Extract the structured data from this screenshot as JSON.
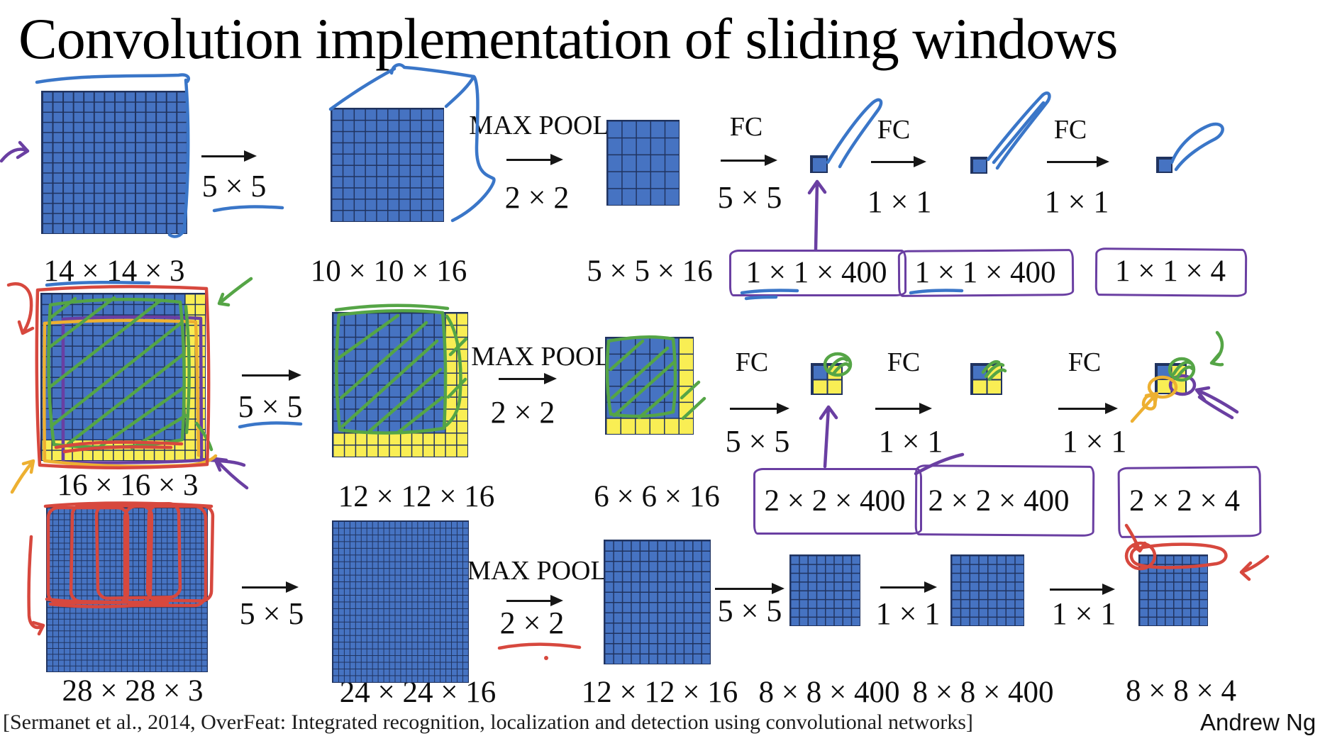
{
  "slide": {
    "title": "Convolution implementation of sliding windows",
    "citation": "[Sermanet et al., 2014, OverFeat: Integrated recognition, localization and detection using convolutional networks]",
    "attribution": "Andrew Ng"
  },
  "colors": {
    "grid_blue": "#4673c2",
    "grid_yellow": "#f9ee54",
    "grid_line": "#20335f",
    "pen_blue": "#3a76c8",
    "pen_purple": "#6a3fa2",
    "pen_green": "#55a546",
    "pen_red": "#d7483e",
    "pen_orange": "#edb031",
    "text": "#101010"
  },
  "rows": [
    {
      "name": "row-14x14",
      "ops": [
        {
          "top": "",
          "bottom": "5 × 5"
        },
        {
          "top": "MAX POOL",
          "bottom": "2 × 2"
        },
        {
          "top": "FC",
          "bottom": "5 × 5"
        },
        {
          "top": "FC",
          "bottom": "1 × 1"
        },
        {
          "top": "FC",
          "bottom": "1 × 1"
        }
      ],
      "dims": [
        "14 × 14  × 3",
        "10 × 10 × 16",
        "5 × 5 × 16",
        "1 × 1 × 400",
        "1 × 1 × 400",
        "1 × 1 × 4"
      ]
    },
    {
      "name": "row-16x16",
      "ops": [
        {
          "top": "",
          "bottom": "5 × 5"
        },
        {
          "top": "MAX POOL",
          "bottom": "2 × 2"
        },
        {
          "top": "FC",
          "bottom": "5 × 5"
        },
        {
          "top": "FC",
          "bottom": "1 × 1"
        },
        {
          "top": "FC",
          "bottom": "1 × 1"
        }
      ],
      "dims": [
        "16 × 16 × 3",
        "12 × 12 × 16",
        "6 × 6 × 16",
        "2 × 2 × 400",
        "2 × 2 × 400",
        "2 × 2 × 4"
      ]
    },
    {
      "name": "row-28x28",
      "ops": [
        {
          "top": "",
          "bottom": "5 × 5"
        },
        {
          "top": "MAX POOL",
          "bottom": "2 × 2"
        },
        {
          "top": "",
          "bottom": "5 × 5"
        },
        {
          "top": "",
          "bottom": "1 × 1"
        },
        {
          "top": "",
          "bottom": "1 × 1"
        }
      ],
      "dims": [
        "28 × 28 × 3",
        "24 × 24 × 16",
        "12 × 12 × 16",
        "8 × 8 × 400",
        "8 × 8 × 400",
        "8 × 8 × 4"
      ]
    }
  ],
  "grids": {
    "r1_input": {
      "cols": 14,
      "rows": 14,
      "blue_cols": 14,
      "blue_rows": 14
    },
    "r1_conv": {
      "cols": 10,
      "rows": 10,
      "blue_cols": 10,
      "blue_rows": 10
    },
    "r1_pool": {
      "cols": 5,
      "rows": 5,
      "blue_cols": 5,
      "blue_rows": 5
    },
    "r1_fc1": {
      "cols": 1,
      "rows": 1,
      "blue_cols": 1,
      "blue_rows": 1
    },
    "r1_fc2": {
      "cols": 1,
      "rows": 1,
      "blue_cols": 1,
      "blue_rows": 1
    },
    "r1_out": {
      "cols": 1,
      "rows": 1,
      "blue_cols": 1,
      "blue_rows": 1
    },
    "r2_input": {
      "cols": 16,
      "rows": 16,
      "blue_cols": 14,
      "blue_rows": 14
    },
    "r2_conv": {
      "cols": 12,
      "rows": 12,
      "blue_cols": 10,
      "blue_rows": 10
    },
    "r2_pool": {
      "cols": 6,
      "rows": 6,
      "blue_cols": 5,
      "blue_rows": 5
    },
    "r2_fc1": {
      "cols": 2,
      "rows": 2,
      "blue_cols": 1,
      "blue_rows": 1
    },
    "r2_fc2": {
      "cols": 2,
      "rows": 2,
      "blue_cols": 1,
      "blue_rows": 1
    },
    "r2_out": {
      "cols": 2,
      "rows": 2,
      "blue_cols": 1,
      "blue_rows": 1
    },
    "r3_input": {
      "cols": 28,
      "rows": 28,
      "blue_cols": 28,
      "blue_rows": 28
    },
    "r3_conv": {
      "cols": 24,
      "rows": 24,
      "blue_cols": 24,
      "blue_rows": 24
    },
    "r3_pool": {
      "cols": 12,
      "rows": 12,
      "blue_cols": 12,
      "blue_rows": 12
    },
    "r3_fc1": {
      "cols": 8,
      "rows": 8,
      "blue_cols": 8,
      "blue_rows": 8
    },
    "r3_fc2": {
      "cols": 8,
      "rows": 8,
      "blue_cols": 8,
      "blue_rows": 8
    },
    "r3_out": {
      "cols": 8,
      "rows": 8,
      "blue_cols": 8,
      "blue_rows": 8
    }
  }
}
